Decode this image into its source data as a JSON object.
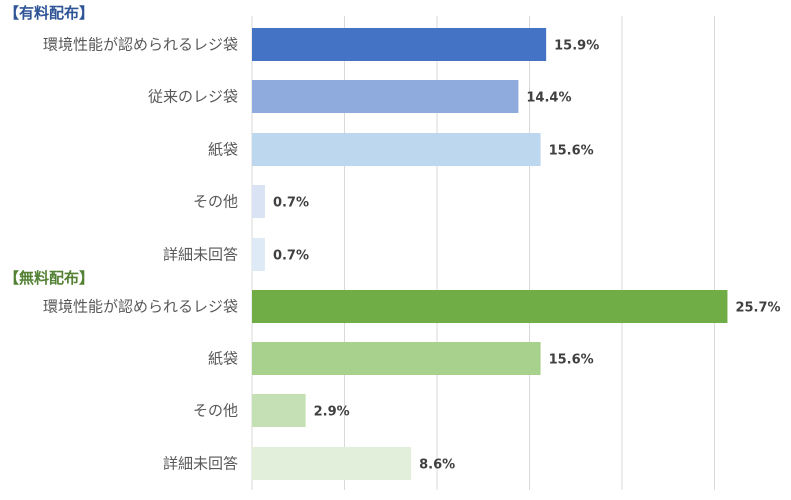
{
  "chart_data": {
    "type": "bar",
    "orientation": "horizontal",
    "xlim": [
      0,
      26
    ],
    "grid": true,
    "groups": [
      {
        "label": "【有料配布】",
        "color": "#2F5597",
        "rows": [
          {
            "category": "環境性能が認められるレジ袋",
            "value": 15.9,
            "label": "15.9%",
            "color": "#4472C4"
          },
          {
            "category": "従来のレジ袋",
            "value": 14.4,
            "label": "14.4%",
            "color": "#8FAADC"
          },
          {
            "category": "紙袋",
            "value": 15.6,
            "label": "15.6%",
            "color": "#BDD7EE"
          },
          {
            "category": "その他",
            "value": 0.7,
            "label": "0.7%",
            "color": "#DAE3F3"
          },
          {
            "category": "詳細未回答",
            "value": 0.7,
            "label": "0.7%",
            "color": "#DEEBF7"
          }
        ]
      },
      {
        "label": "【無料配布】",
        "color": "#548235",
        "rows": [
          {
            "category": "環境性能が認められるレジ袋",
            "value": 25.7,
            "label": "25.7%",
            "color": "#70AD47"
          },
          {
            "category": "紙袋",
            "value": 15.6,
            "label": "15.6%",
            "color": "#A9D18E"
          },
          {
            "category": "その他",
            "value": 2.9,
            "label": "2.9%",
            "color": "#C5E0B4"
          },
          {
            "category": "詳細未回答",
            "value": 8.6,
            "label": "8.6%",
            "color": "#E2EFDA"
          }
        ]
      }
    ]
  }
}
